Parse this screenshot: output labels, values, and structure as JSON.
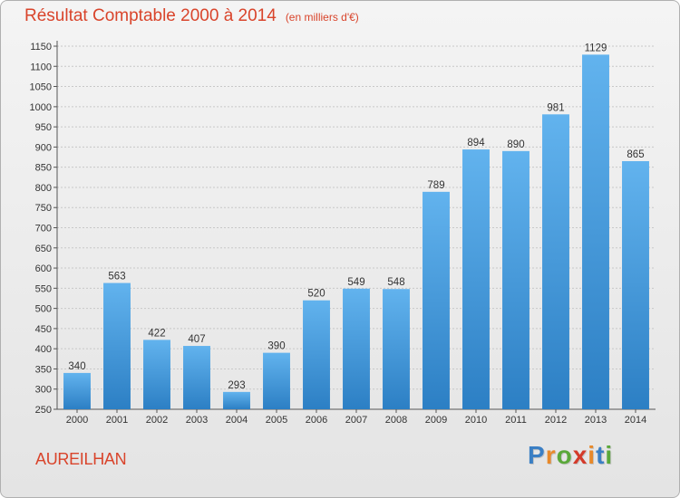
{
  "title": "Résultat Comptable 2000 à 2014",
  "subtitle": "(en milliers d'€)",
  "commune": "AUREILHAN",
  "logo": {
    "text": "Proxiti",
    "letter_colors": [
      "#3b7fc4",
      "#e8892a",
      "#5aa83a",
      "#d43a2a",
      "#e8892a",
      "#3b7fc4",
      "#5aa83a"
    ]
  },
  "colors": {
    "title": "#d9442b",
    "bar_light": "#62b3ee",
    "bar_dark": "#2c7fc4",
    "grid": "#c8c8c8"
  },
  "chart_data": {
    "type": "bar",
    "categories": [
      "2000",
      "2001",
      "2002",
      "2003",
      "2004",
      "2005",
      "2006",
      "2007",
      "2008",
      "2009",
      "2010",
      "2011",
      "2012",
      "2013",
      "2014"
    ],
    "values": [
      340,
      563,
      422,
      407,
      293,
      390,
      520,
      549,
      548,
      789,
      894,
      890,
      981,
      1129,
      865
    ],
    "ylim": [
      250,
      1150
    ],
    "yticks": [
      250,
      300,
      350,
      400,
      450,
      500,
      550,
      600,
      650,
      700,
      750,
      800,
      850,
      900,
      950,
      1000,
      1050,
      1100,
      1150
    ],
    "grid": true,
    "xlabel": "",
    "ylabel": ""
  }
}
